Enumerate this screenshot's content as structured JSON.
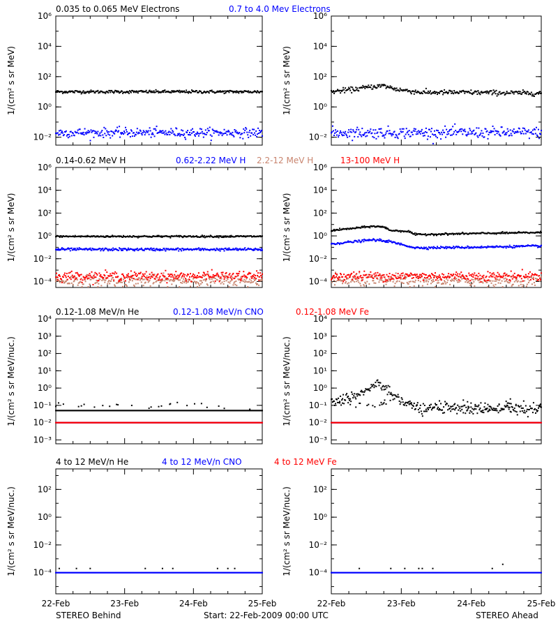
{
  "colors": {
    "black": "#000000",
    "blue": "#0000ff",
    "red": "#ff0000",
    "salmon": "#c8846e",
    "background": "#ffffff"
  },
  "footer": {
    "left": "STEREO Behind",
    "center": "Start: 22-Feb-2009 00:00 UTC",
    "right": "STEREO Ahead"
  },
  "x_ticks": [
    "22-Feb",
    "23-Feb",
    "24-Feb",
    "25-Feb"
  ],
  "chart_data": [
    {
      "type": "scatter",
      "row": 0,
      "ylabel": "1/(cm² s sr MeV)",
      "yscale": "log",
      "ylim": [
        0.003,
        1000000
      ],
      "yticks": [
        {
          "value": 0.01,
          "label": "10⁻²"
        },
        {
          "value": 1,
          "label": "10⁰"
        },
        {
          "value": 100,
          "label": "10²"
        },
        {
          "value": 10000,
          "label": "10⁴"
        },
        {
          "value": 1000000,
          "label": "10⁶"
        }
      ],
      "legend": [
        {
          "text": "0.035 to 0.065 MeV Electrons",
          "color": "#000000"
        },
        {
          "text": "0.7 to 4.0 Mev Electrons",
          "color": "#0000ff"
        }
      ],
      "panels": [
        {
          "name": "STEREO Behind",
          "series": [
            {
              "name": "0.035 to 0.065 MeV Electrons",
              "color": "#000000",
              "level": 10,
              "scatter": 0.05,
              "profile": [
                [
                  0,
                  10
                ],
                [
                  3,
                  10
                ]
              ]
            },
            {
              "name": "0.7 to 4.0 Mev Electrons",
              "color": "#0000ff",
              "level": 0.02,
              "scatter": 0.15,
              "profile": [
                [
                  0,
                  0.02
                ],
                [
                  3,
                  0.02
                ]
              ]
            }
          ]
        },
        {
          "name": "STEREO Ahead",
          "series": [
            {
              "name": "0.035 to 0.065 MeV Electrons",
              "color": "#000000",
              "scatter": 0.08,
              "profile": [
                [
                  0,
                  10
                ],
                [
                  0.3,
                  14
                ],
                [
                  0.6,
                  22
                ],
                [
                  0.75,
                  25
                ],
                [
                  0.95,
                  14
                ],
                [
                  1.3,
                  9
                ],
                [
                  2.0,
                  9
                ],
                [
                  3,
                  8
                ]
              ]
            },
            {
              "name": "0.7 to 4.0 Mev Electrons",
              "color": "#0000ff",
              "scatter": 0.18,
              "profile": [
                [
                  0,
                  0.02
                ],
                [
                  3,
                  0.02
                ]
              ]
            }
          ]
        }
      ]
    },
    {
      "type": "scatter",
      "row": 1,
      "ylabel": "1/(cm² s sr MeV)",
      "yscale": "log",
      "ylim": [
        3e-05,
        1000000
      ],
      "yticks": [
        {
          "value": 0.0001,
          "label": "10⁻⁴"
        },
        {
          "value": 0.01,
          "label": "10⁻²"
        },
        {
          "value": 1,
          "label": "10⁰"
        },
        {
          "value": 100,
          "label": "10²"
        },
        {
          "value": 10000,
          "label": "10⁴"
        },
        {
          "value": 1000000,
          "label": "10⁶"
        }
      ],
      "legend": [
        {
          "text": "0.14-0.62 MeV H",
          "color": "#000000"
        },
        {
          "text": "0.62-2.22 MeV H",
          "color": "#0000ff"
        },
        {
          "text": "2.2-12 MeV H",
          "color": "#c8846e"
        },
        {
          "text": "13-100 MeV H",
          "color": "#ff0000"
        }
      ],
      "panels": [
        {
          "name": "STEREO Behind",
          "series": [
            {
              "name": "0.14-0.62 MeV H",
              "color": "#000000",
              "scatter": 0.04,
              "profile": [
                [
                  0,
                  0.9
                ],
                [
                  3,
                  0.9
                ]
              ]
            },
            {
              "name": "0.62-2.22 MeV H",
              "color": "#0000ff",
              "scatter": 0.06,
              "profile": [
                [
                  0,
                  0.065
                ],
                [
                  3,
                  0.065
                ]
              ]
            },
            {
              "name": "2.2-12 MeV H",
              "color": "#c8846e",
              "scatter": 0.25,
              "profile": [
                [
                  0,
                  0.00012
                ],
                [
                  3,
                  0.00012
                ]
              ]
            },
            {
              "name": "13-100 MeV H",
              "color": "#ff0000",
              "scatter": 0.2,
              "profile": [
                [
                  0,
                  0.0003
                ],
                [
                  3,
                  0.0003
                ]
              ]
            }
          ]
        },
        {
          "name": "STEREO Ahead",
          "series": [
            {
              "name": "0.14-0.62 MeV H",
              "color": "#000000",
              "scatter": 0.04,
              "profile": [
                [
                  0,
                  3
                ],
                [
                  0.3,
                  4.5
                ],
                [
                  0.6,
                  7
                ],
                [
                  0.75,
                  6
                ],
                [
                  0.85,
                  3
                ],
                [
                  1.1,
                  2.5
                ],
                [
                  1.2,
                  1.3
                ],
                [
                  2.0,
                  1.6
                ],
                [
                  3,
                  2
                ]
              ]
            },
            {
              "name": "0.62-2.22 MeV H",
              "color": "#0000ff",
              "scatter": 0.05,
              "profile": [
                [
                  0,
                  0.2
                ],
                [
                  0.3,
                  0.3
                ],
                [
                  0.6,
                  0.45
                ],
                [
                  0.8,
                  0.35
                ],
                [
                  1.0,
                  0.18
                ],
                [
                  1.2,
                  0.09
                ],
                [
                  2.0,
                  0.1
                ],
                [
                  3,
                  0.13
                ]
              ]
            },
            {
              "name": "2.2-12 MeV H",
              "color": "#c8846e",
              "scatter": 0.25,
              "profile": [
                [
                  0,
                  0.00012
                ],
                [
                  3,
                  0.00012
                ]
              ]
            },
            {
              "name": "13-100 MeV H",
              "color": "#ff0000",
              "scatter": 0.2,
              "profile": [
                [
                  0,
                  0.0003
                ],
                [
                  3,
                  0.0003
                ]
              ]
            }
          ]
        }
      ]
    },
    {
      "type": "scatter",
      "row": 2,
      "ylabel": "1/(cm² s sr MeV/nuc.)",
      "yscale": "log",
      "ylim": [
        0.0006,
        10000
      ],
      "yticks": [
        {
          "value": 0.001,
          "label": "10⁻³"
        },
        {
          "value": 0.01,
          "label": "10⁻²"
        },
        {
          "value": 0.1,
          "label": "10⁻¹"
        },
        {
          "value": 1,
          "label": "10⁰"
        },
        {
          "value": 10,
          "label": "10¹"
        },
        {
          "value": 100,
          "label": "10²"
        },
        {
          "value": 1000,
          "label": "10³"
        },
        {
          "value": 10000,
          "label": "10⁴"
        }
      ],
      "legend": [
        {
          "text": "0.12-1.08 MeV/n He",
          "color": "#000000"
        },
        {
          "text": "0.12-1.08 MeV/n CNO",
          "color": "#0000ff"
        },
        {
          "text": "0.12-1.08 MeV Fe",
          "color": "#ff0000"
        }
      ],
      "panels": [
        {
          "name": "STEREO Behind",
          "series": [
            {
              "name": "0.12-1.08 MeV/n He",
              "color": "#000000",
              "scatter": 0.0,
              "profile": [
                [
                  0,
                  0.05
                ],
                [
                  3,
                  0.05
                ]
              ],
              "upper": 0.1
            },
            {
              "name": "0.12-1.08 MeV/n CNO",
              "color": "#0000ff",
              "scatter": 0.0,
              "profile": [
                [
                  0,
                  0.01
                ],
                [
                  3,
                  0.01
                ]
              ]
            },
            {
              "name": "0.12-1.08 MeV Fe",
              "color": "#ff0000",
              "scatter": 0.0,
              "profile": [
                [
                  0,
                  0.01
                ],
                [
                  3,
                  0.01
                ]
              ]
            }
          ]
        },
        {
          "name": "STEREO Ahead",
          "series": [
            {
              "name": "0.12-1.08 MeV/n He",
              "color": "#000000",
              "scatter": 0.15,
              "profile": [
                [
                  0,
                  0.15
                ],
                [
                  0.3,
                  0.3
                ],
                [
                  0.5,
                  0.8
                ],
                [
                  0.65,
                  1.8
                ],
                [
                  0.75,
                  1.2
                ],
                [
                  0.95,
                  0.25
                ],
                [
                  1.2,
                  0.07
                ],
                [
                  3,
                  0.06
                ]
              ],
              "upper": 0.12
            },
            {
              "name": "0.12-1.08 MeV/n CNO",
              "color": "#0000ff",
              "scatter": 0.0,
              "profile": [
                [
                  0,
                  0.01
                ],
                [
                  3,
                  0.01
                ]
              ]
            },
            {
              "name": "0.12-1.08 MeV Fe",
              "color": "#ff0000",
              "scatter": 0.0,
              "profile": [
                [
                  0,
                  0.01
                ],
                [
                  3,
                  0.01
                ]
              ]
            }
          ]
        }
      ]
    },
    {
      "type": "scatter",
      "row": 3,
      "ylabel": "1/(cm² s sr MeV/nuc.)",
      "yscale": "log",
      "ylim": [
        3e-06,
        3000
      ],
      "yticks": [
        {
          "value": 0.0001,
          "label": "10⁻⁴"
        },
        {
          "value": 0.01,
          "label": "10⁻²"
        },
        {
          "value": 1,
          "label": "10⁰"
        },
        {
          "value": 100,
          "label": "10²"
        }
      ],
      "legend": [
        {
          "text": "4 to 12 MeV/n He",
          "color": "#000000"
        },
        {
          "text": "4 to 12 MeV/n CNO",
          "color": "#0000ff"
        },
        {
          "text": "4 to 12 MeV Fe",
          "color": "#ff0000"
        }
      ],
      "panels": [
        {
          "name": "STEREO Behind",
          "series": [
            {
              "name": "4 to 12 MeV/n CNO",
              "color": "#0000ff",
              "scatter": 0.0,
              "profile": [
                [
                  0,
                  0.0001
                ],
                [
                  3,
                  0.0001
                ]
              ]
            },
            {
              "name": "4 to 12 MeV/n He",
              "color": "#000000",
              "scatter": 0.0,
              "sparse": [
                [
                  0.05,
                  0.0002
                ],
                [
                  0.3,
                  0.0002
                ],
                [
                  0.5,
                  0.0002
                ],
                [
                  1.3,
                  0.0002
                ],
                [
                  1.55,
                  0.0002
                ],
                [
                  1.7,
                  0.0002
                ],
                [
                  2.35,
                  0.0002
                ],
                [
                  2.5,
                  0.0002
                ],
                [
                  2.6,
                  0.0002
                ]
              ]
            },
            {
              "name": "4 to 12 MeV Fe",
              "color": "#ff0000",
              "scatter": 0.0,
              "sparse": []
            }
          ]
        },
        {
          "name": "STEREO Ahead",
          "series": [
            {
              "name": "4 to 12 MeV/n CNO",
              "color": "#0000ff",
              "scatter": 0.0,
              "profile": [
                [
                  0,
                  0.0001
                ],
                [
                  3,
                  0.0001
                ]
              ]
            },
            {
              "name": "4 to 12 MeV/n He",
              "color": "#000000",
              "scatter": 0.0,
              "sparse": [
                [
                  0.4,
                  0.0002
                ],
                [
                  0.85,
                  0.0002
                ],
                [
                  1.05,
                  0.0002
                ],
                [
                  1.25,
                  0.0002
                ],
                [
                  1.3,
                  0.0002
                ],
                [
                  1.45,
                  0.0002
                ],
                [
                  2.3,
                  0.0002
                ],
                [
                  2.45,
                  0.0004
                ]
              ]
            },
            {
              "name": "4 to 12 MeV Fe",
              "color": "#ff0000",
              "scatter": 0.0,
              "sparse": []
            }
          ]
        }
      ]
    }
  ]
}
